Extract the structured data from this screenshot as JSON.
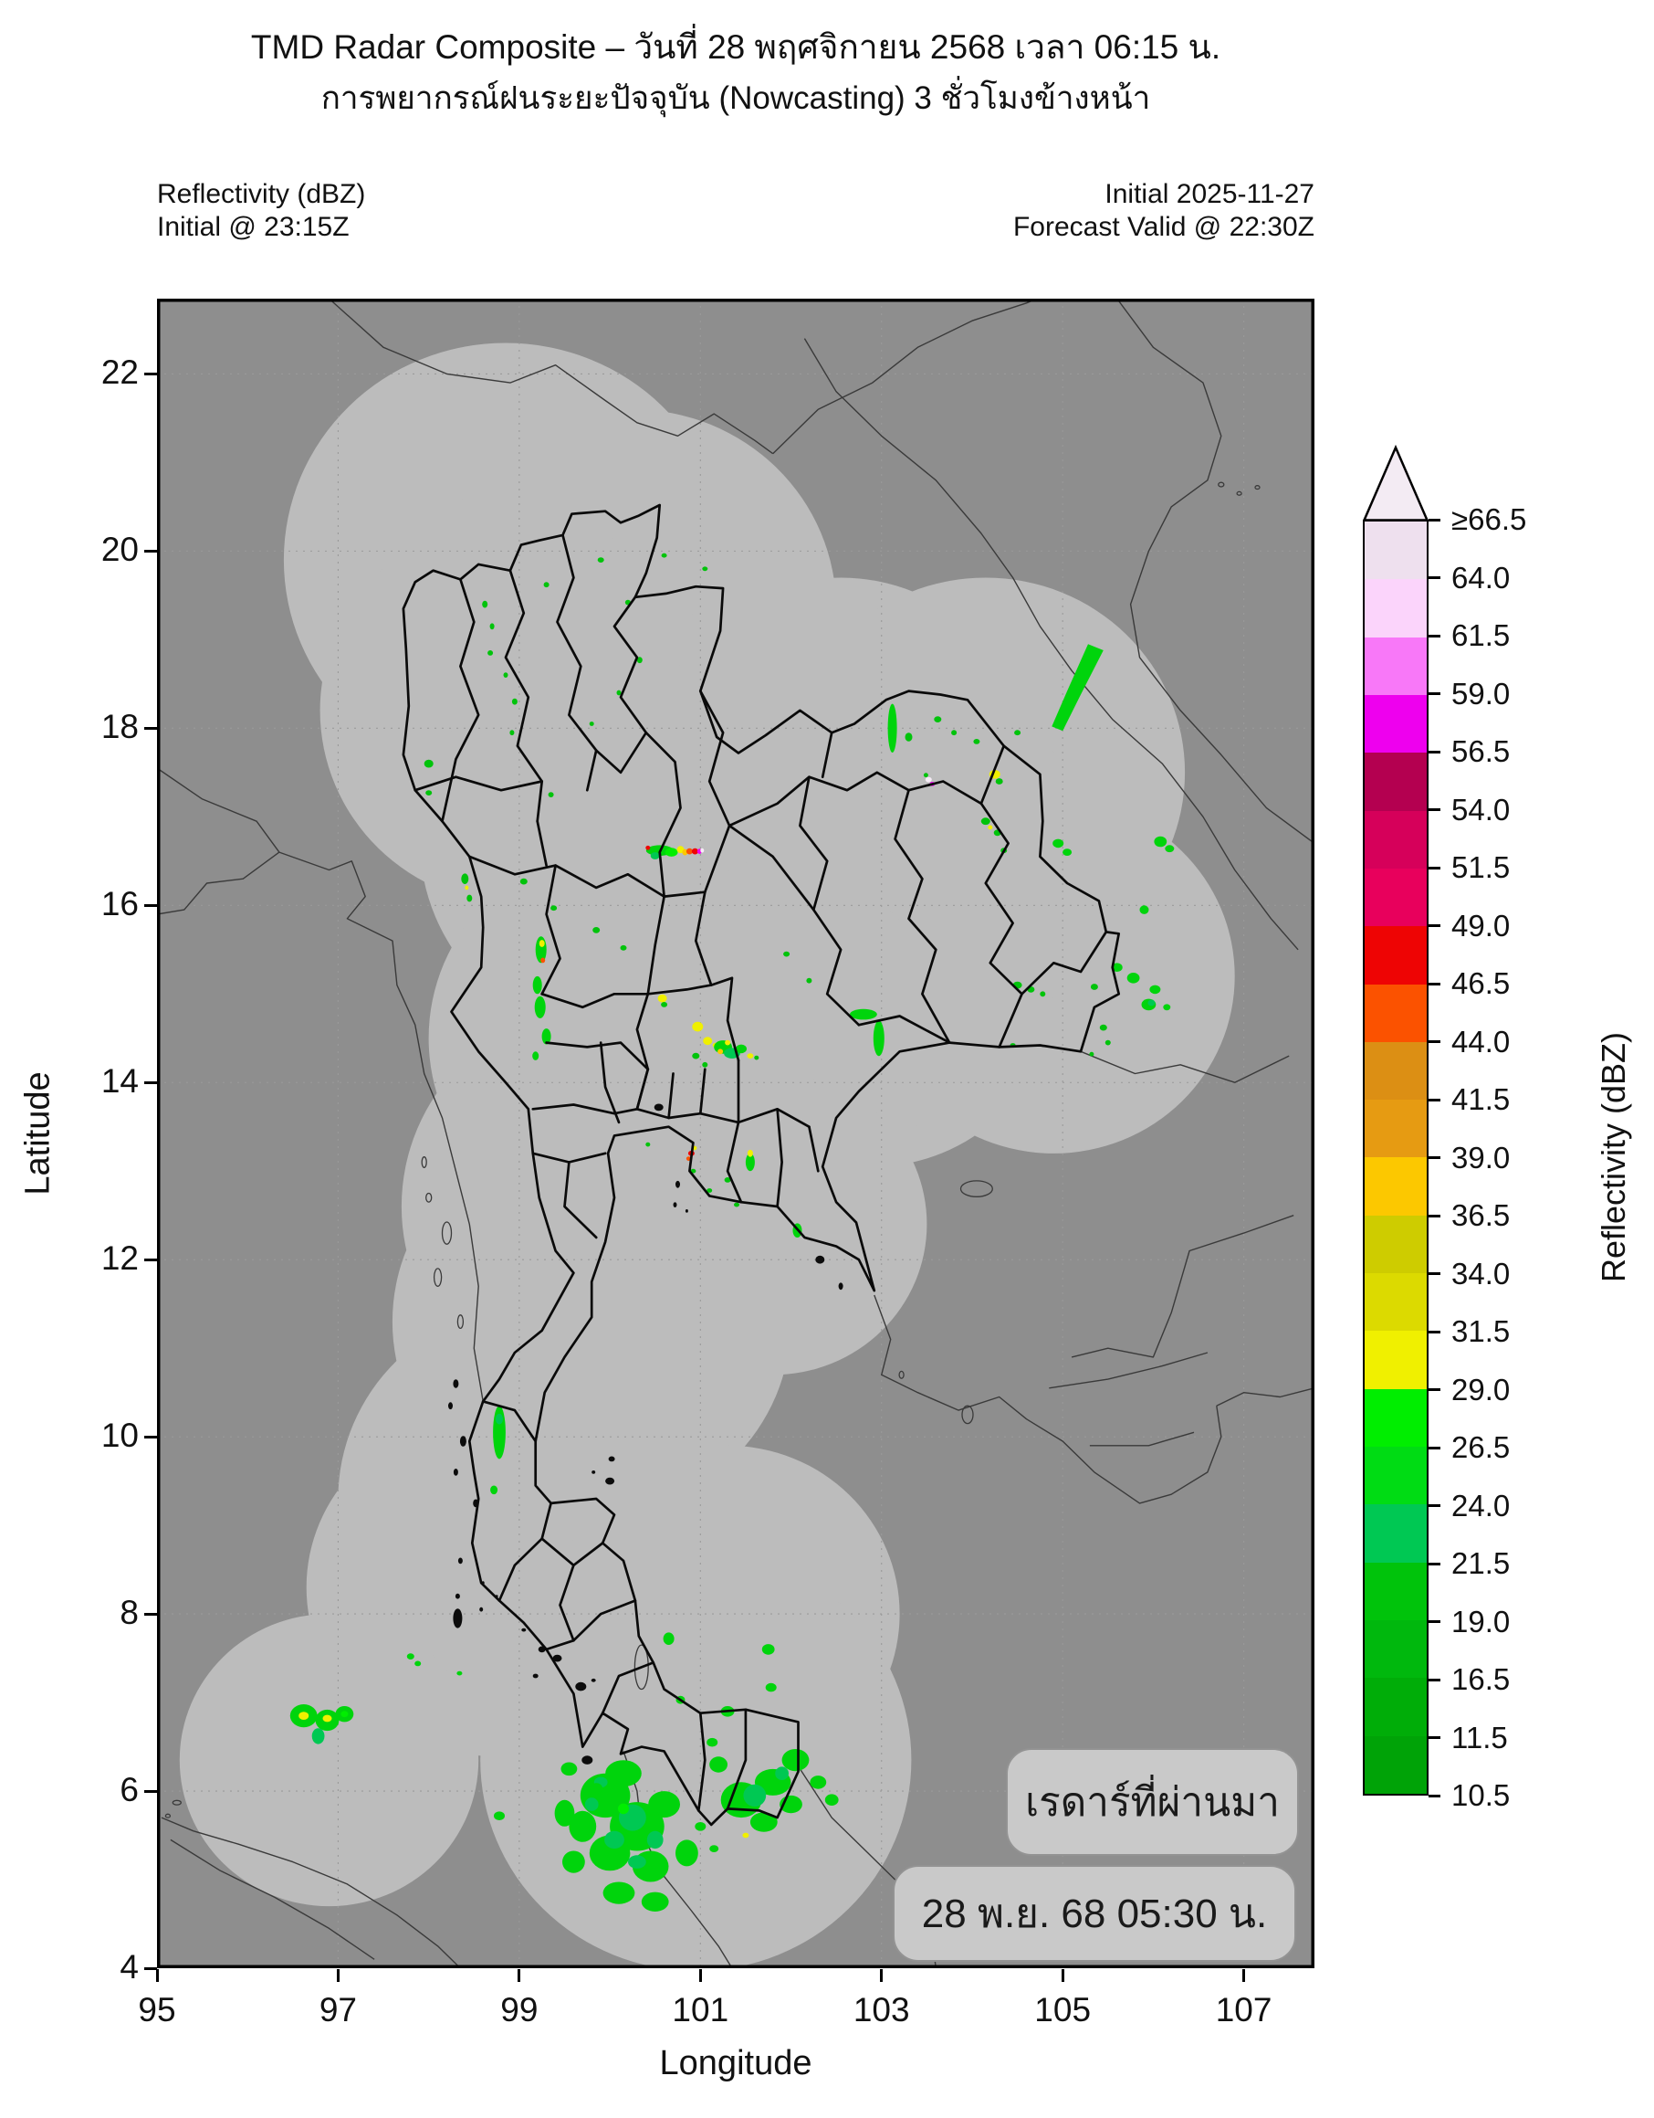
{
  "title": "TMD Radar Composite – วันที่ 28 พฤศจิกายน 2568 เวลา 06:15 น.",
  "subtitle": "การพยากรณ์ฝนระยะปัจจุบัน (Nowcasting) 3 ชั่วโมงข้างหน้า",
  "annotations": {
    "top_left_line1": "Reflectivity (dBZ)",
    "top_left_line2": "Initial @ 23:15Z",
    "top_right_line1": "Initial 2025-11-27",
    "top_right_line2": "Forecast Valid @ 22:30Z"
  },
  "axes": {
    "xlabel": "Longitude",
    "ylabel": "Latitude",
    "x_ticks": [
      95,
      97,
      99,
      101,
      103,
      105,
      107
    ],
    "y_ticks": [
      22,
      20,
      18,
      16,
      14,
      12,
      10,
      8,
      6,
      4
    ],
    "extent": {
      "lon_min": 95,
      "lon_max": 107.78,
      "lat_min": 4,
      "lat_max": 22.85
    }
  },
  "colorbar": {
    "label": "Reflectivity (dBZ)",
    "boundaries": [
      "10.5",
      "11.5",
      "16.5",
      "19.0",
      "21.5",
      "24.0",
      "26.5",
      "29.0",
      "31.5",
      "34.0",
      "36.5",
      "39.0",
      "41.5",
      "44.0",
      "46.5",
      "49.0",
      "51.5",
      "54.0",
      "56.5",
      "59.0",
      "61.5",
      "64.0",
      "≥66.5"
    ],
    "segment_colors": [
      "#00a307",
      "#00ad08",
      "#00b80d",
      "#00c30b",
      "#00c853",
      "#00dc14",
      "#00ee00",
      "#f0f000",
      "#dcda00",
      "#cecc00",
      "#fcc800",
      "#e69b12",
      "#dc8f14",
      "#fb5200",
      "#ee0404",
      "#e8005c",
      "#d6005a",
      "#b40050",
      "#ee00ee",
      "#f878f8",
      "#fbd4fb",
      "#eee0ee"
    ],
    "arrow_color": "#f3ebf3"
  },
  "overlay_boxes": {
    "past_radar_label": "เรดาร์ที่ผ่านมา",
    "timestamp_label": "28 พ.ย. 68 05:30 น."
  },
  "map": {
    "background_color": "#8e8e8e",
    "coverage_color": "#bcbcbc",
    "coverage_circles": [
      [
        98.85,
        19.9,
        2.45
      ],
      [
        100.25,
        19.35,
        2.25
      ],
      [
        99.0,
        18.2,
        2.2
      ],
      [
        100.2,
        16.75,
        2.3
      ],
      [
        102.55,
        17.6,
        2.1
      ],
      [
        104.15,
        17.5,
        2.2
      ],
      [
        104.9,
        15.2,
        2.0
      ],
      [
        102.9,
        15.05,
        2.0
      ],
      [
        103.6,
        16.35,
        1.9
      ],
      [
        100.2,
        14.5,
        2.2
      ],
      [
        101.8,
        14.55,
        1.9
      ],
      [
        100.0,
        12.6,
        2.3
      ],
      [
        101.8,
        12.4,
        1.7
      ],
      [
        99.8,
        11.3,
        2.2
      ],
      [
        99.2,
        9.3,
        2.2
      ],
      [
        98.55,
        8.3,
        1.9
      ],
      [
        101.3,
        8.0,
        1.9
      ],
      [
        96.9,
        6.35,
        1.65
      ],
      [
        100.95,
        6.35,
        2.38
      ]
    ],
    "echoes": [
      [
        99.95,
        5.95,
        0.55,
        0.5,
        "#00d40c"
      ],
      [
        100.3,
        5.6,
        0.6,
        0.55,
        "#00d40c"
      ],
      [
        100.0,
        5.3,
        0.45,
        0.4,
        "#00d40c"
      ],
      [
        100.45,
        5.15,
        0.4,
        0.35,
        "#00d40c"
      ],
      [
        99.7,
        5.6,
        0.3,
        0.35,
        "#00d40c"
      ],
      [
        100.15,
        6.2,
        0.4,
        0.3,
        "#00d40c"
      ],
      [
        100.6,
        5.85,
        0.35,
        0.3,
        "#00d40c"
      ],
      [
        99.6,
        5.2,
        0.25,
        0.25,
        "#00d40c"
      ],
      [
        100.1,
        4.85,
        0.35,
        0.25,
        "#00d40c"
      ],
      [
        100.5,
        4.75,
        0.3,
        0.22,
        "#00d40c"
      ],
      [
        100.85,
        5.3,
        0.25,
        0.3,
        "#00d40c"
      ],
      [
        99.55,
        6.25,
        0.18,
        0.15,
        "#00d40c"
      ],
      [
        99.5,
        5.75,
        0.22,
        0.3,
        "#00d40c"
      ],
      [
        100.25,
        5.7,
        0.3,
        0.3,
        "#00c853"
      ],
      [
        100.05,
        5.45,
        0.22,
        0.2,
        "#00c853"
      ],
      [
        100.5,
        5.45,
        0.18,
        0.2,
        "#00c853"
      ],
      [
        99.8,
        5.85,
        0.15,
        0.15,
        "#00c853"
      ],
      [
        100.3,
        5.2,
        0.2,
        0.15,
        "#00c853"
      ],
      [
        99.9,
        6.1,
        0.15,
        0.12,
        "#00c853"
      ],
      [
        100.15,
        5.8,
        0.12,
        0.12,
        "#00ee00"
      ],
      [
        101.45,
        5.9,
        0.45,
        0.4,
        "#00d40c"
      ],
      [
        101.8,
        6.1,
        0.4,
        0.3,
        "#00d40c"
      ],
      [
        102.05,
        6.35,
        0.3,
        0.25,
        "#00d40c"
      ],
      [
        101.7,
        5.65,
        0.3,
        0.22,
        "#00d40c"
      ],
      [
        102.0,
        5.85,
        0.25,
        0.2,
        "#00d40c"
      ],
      [
        101.2,
        6.3,
        0.2,
        0.18,
        "#00d40c"
      ],
      [
        102.3,
        6.1,
        0.18,
        0.15,
        "#00d40c"
      ],
      [
        102.45,
        5.9,
        0.15,
        0.13,
        "#00d40c"
      ],
      [
        101.6,
        5.95,
        0.25,
        0.25,
        "#00c853"
      ],
      [
        101.9,
        6.2,
        0.15,
        0.15,
        "#00c853"
      ],
      [
        101.5,
        5.5,
        0.07,
        0.06,
        "#f0f000"
      ],
      [
        101.0,
        5.6,
        0.12,
        0.1,
        "#00d40c"
      ],
      [
        101.15,
        5.35,
        0.1,
        0.08,
        "#00d40c"
      ],
      [
        98.78,
        5.72,
        0.12,
        0.1,
        "#00d40c"
      ],
      [
        101.13,
        6.55,
        0.12,
        0.1,
        "#00d40c"
      ],
      [
        101.3,
        6.9,
        0.15,
        0.12,
        "#00d40c"
      ],
      [
        101.78,
        7.17,
        0.12,
        0.1,
        "#00d40c"
      ],
      [
        101.75,
        7.6,
        0.14,
        0.12,
        "#00d40c"
      ],
      [
        100.78,
        7.03,
        0.1,
        0.09,
        "#00d40c"
      ],
      [
        100.65,
        7.72,
        0.12,
        0.14,
        "#00d40c"
      ],
      [
        99.85,
        6.03,
        0.14,
        0.12,
        "#00d40c"
      ],
      [
        96.62,
        6.85,
        0.3,
        0.26,
        "#00d40c"
      ],
      [
        96.62,
        6.85,
        0.11,
        0.09,
        "#f0f000"
      ],
      [
        96.88,
        6.8,
        0.26,
        0.24,
        "#00d40c"
      ],
      [
        96.88,
        6.82,
        0.1,
        0.08,
        "#f0f000"
      ],
      [
        96.78,
        6.62,
        0.14,
        0.18,
        "#00c853"
      ],
      [
        97.07,
        6.87,
        0.2,
        0.18,
        "#00d40c"
      ],
      [
        97.07,
        6.87,
        0.08,
        0.07,
        "#00ee00"
      ],
      [
        97.8,
        7.52,
        0.08,
        0.07,
        "#00d40c"
      ],
      [
        97.88,
        7.44,
        0.07,
        0.06,
        "#00d40c"
      ],
      [
        98.34,
        7.33,
        0.06,
        0.05,
        "#00d40c"
      ],
      [
        98.78,
        10.05,
        0.14,
        0.6,
        "#00d40c"
      ],
      [
        98.78,
        10.2,
        0.08,
        0.12,
        "#00c853"
      ],
      [
        98.72,
        9.4,
        0.08,
        0.1,
        "#00d40c"
      ],
      [
        99.24,
        15.5,
        0.12,
        0.3,
        "#00d40c"
      ],
      [
        99.25,
        15.57,
        0.06,
        0.08,
        "#f0f000"
      ],
      [
        99.26,
        15.38,
        0.05,
        0.06,
        "#fb5200"
      ],
      [
        99.2,
        15.1,
        0.1,
        0.2,
        "#00d40c"
      ],
      [
        99.23,
        14.85,
        0.12,
        0.25,
        "#00d40c"
      ],
      [
        99.3,
        14.52,
        0.1,
        0.18,
        "#00d40c"
      ],
      [
        99.18,
        14.3,
        0.07,
        0.1,
        "#00d40c"
      ],
      [
        98.4,
        16.3,
        0.08,
        0.12,
        "#00c30b"
      ],
      [
        98.45,
        16.08,
        0.06,
        0.08,
        "#00c30b"
      ],
      [
        99.05,
        16.27,
        0.08,
        0.07,
        "#00c30b"
      ],
      [
        99.38,
        15.97,
        0.07,
        0.06,
        "#00c30b"
      ],
      [
        99.85,
        15.72,
        0.08,
        0.07,
        "#00c30b"
      ],
      [
        100.15,
        15.52,
        0.07,
        0.06,
        "#00c30b"
      ],
      [
        98.0,
        17.6,
        0.1,
        0.09,
        "#00c30b"
      ],
      [
        98.0,
        17.27,
        0.07,
        0.06,
        "#00c30b"
      ],
      [
        98.62,
        19.4,
        0.06,
        0.08,
        "#00c30b"
      ],
      [
        98.7,
        19.15,
        0.05,
        0.07,
        "#00c30b"
      ],
      [
        98.68,
        18.85,
        0.06,
        0.06,
        "#00c30b"
      ],
      [
        98.85,
        18.6,
        0.05,
        0.06,
        "#00c30b"
      ],
      [
        98.95,
        18.3,
        0.06,
        0.07,
        "#00c30b"
      ],
      [
        98.92,
        17.95,
        0.05,
        0.06,
        "#00c30b"
      ],
      [
        99.3,
        19.62,
        0.06,
        0.06,
        "#00c30b"
      ],
      [
        99.9,
        19.9,
        0.07,
        0.06,
        "#00c30b"
      ],
      [
        100.2,
        19.42,
        0.06,
        0.06,
        "#00c30b"
      ],
      [
        100.33,
        18.77,
        0.06,
        0.07,
        "#00c30b"
      ],
      [
        100.1,
        18.4,
        0.05,
        0.06,
        "#00c30b"
      ],
      [
        99.8,
        18.05,
        0.05,
        0.05,
        "#00c30b"
      ],
      [
        100.6,
        19.95,
        0.06,
        0.05,
        "#00c30b"
      ],
      [
        101.05,
        19.8,
        0.06,
        0.05,
        "#00c30b"
      ],
      [
        99.35,
        17.25,
        0.06,
        0.06,
        "#00c30b"
      ],
      [
        98.42,
        16.2,
        0.04,
        0.05,
        "#f0f000"
      ],
      [
        100.55,
        16.62,
        0.3,
        0.12,
        "#00d40c"
      ],
      [
        100.68,
        16.6,
        0.14,
        0.1,
        "#00ee00"
      ],
      [
        100.5,
        16.56,
        0.1,
        0.08,
        "#00c853"
      ],
      [
        100.78,
        16.63,
        0.08,
        0.08,
        "#f0f000"
      ],
      [
        100.83,
        16.6,
        0.06,
        0.07,
        "#fcc800"
      ],
      [
        100.88,
        16.61,
        0.07,
        0.07,
        "#fb5200"
      ],
      [
        100.94,
        16.61,
        0.07,
        0.07,
        "#ee0404"
      ],
      [
        100.99,
        16.61,
        0.05,
        0.06,
        "#ee00ee"
      ],
      [
        101.02,
        16.62,
        0.04,
        0.05,
        "#f6ecf6"
      ],
      [
        100.42,
        16.65,
        0.05,
        0.05,
        "#ee0404"
      ],
      [
        100.58,
        14.95,
        0.1,
        0.09,
        "#f0f000"
      ],
      [
        100.6,
        14.88,
        0.07,
        0.06,
        "#00c30b"
      ],
      [
        100.97,
        14.63,
        0.12,
        0.11,
        "#f0f000"
      ],
      [
        101.08,
        14.47,
        0.1,
        0.09,
        "#f0f000"
      ],
      [
        101.17,
        14.42,
        0.07,
        0.06,
        "#f0f000"
      ],
      [
        101.25,
        14.4,
        0.2,
        0.15,
        "#00d40c"
      ],
      [
        101.35,
        14.33,
        0.18,
        0.12,
        "#00c853"
      ],
      [
        101.45,
        14.38,
        0.12,
        0.1,
        "#00d40c"
      ],
      [
        101.3,
        14.45,
        0.06,
        0.06,
        "#f0f000"
      ],
      [
        101.22,
        14.35,
        0.06,
        0.06,
        "#fcc800"
      ],
      [
        101.55,
        14.3,
        0.07,
        0.06,
        "#f0f000"
      ],
      [
        101.62,
        14.28,
        0.05,
        0.05,
        "#00c30b"
      ],
      [
        100.95,
        14.3,
        0.08,
        0.07,
        "#00c30b"
      ],
      [
        101.05,
        14.2,
        0.06,
        0.06,
        "#00c30b"
      ],
      [
        102.8,
        14.77,
        0.3,
        0.12,
        "#00d40c"
      ],
      [
        102.97,
        14.5,
        0.12,
        0.4,
        "#00d40c"
      ],
      [
        104.5,
        15.1,
        0.1,
        0.08,
        "#00c30b"
      ],
      [
        104.65,
        15.05,
        0.08,
        0.07,
        "#00c30b"
      ],
      [
        104.78,
        15.0,
        0.06,
        0.06,
        "#00c30b"
      ],
      [
        101.95,
        15.45,
        0.07,
        0.06,
        "#00c30b"
      ],
      [
        102.2,
        15.15,
        0.06,
        0.06,
        "#00c30b"
      ],
      [
        103.12,
        18.0,
        0.1,
        0.55,
        "#00d40c"
      ],
      [
        103.3,
        17.9,
        0.08,
        0.1,
        "#00c30b"
      ],
      [
        104.25,
        17.48,
        0.12,
        0.1,
        "#f0f000"
      ],
      [
        104.3,
        17.4,
        0.08,
        0.07,
        "#00c30b"
      ],
      [
        103.52,
        17.42,
        0.07,
        0.06,
        "#f6ecf6"
      ],
      [
        103.56,
        17.37,
        0.06,
        0.05,
        "#ee00ee"
      ],
      [
        103.49,
        17.47,
        0.05,
        0.05,
        "#00c30b"
      ],
      [
        103.62,
        18.1,
        0.08,
        0.07,
        "#00c30b"
      ],
      [
        103.8,
        17.95,
        0.06,
        0.06,
        "#00c30b"
      ],
      [
        104.05,
        17.85,
        0.07,
        0.06,
        "#00c30b"
      ],
      [
        104.5,
        17.95,
        0.07,
        0.06,
        "#00c30b"
      ],
      [
        104.15,
        16.95,
        0.1,
        0.08,
        "#00c30b"
      ],
      [
        104.28,
        16.82,
        0.08,
        0.07,
        "#00c30b"
      ],
      [
        104.35,
        16.62,
        0.07,
        0.06,
        "#00c30b"
      ],
      [
        104.2,
        16.88,
        0.05,
        0.05,
        "#f0f000"
      ],
      [
        104.95,
        16.7,
        0.12,
        0.1,
        "#00d40c"
      ],
      [
        105.05,
        16.6,
        0.1,
        0.08,
        "#00d40c"
      ],
      [
        106.08,
        16.72,
        0.14,
        0.12,
        "#00d40c"
      ],
      [
        106.18,
        16.64,
        0.1,
        0.08,
        "#00d40c"
      ],
      [
        105.9,
        15.95,
        0.1,
        0.1,
        "#00d40c"
      ],
      [
        105.6,
        15.3,
        0.12,
        0.1,
        "#00d40c"
      ],
      [
        105.78,
        15.18,
        0.14,
        0.12,
        "#00d40c"
      ],
      [
        106.02,
        15.05,
        0.12,
        0.1,
        "#00d40c"
      ],
      [
        105.95,
        14.88,
        0.16,
        0.13,
        "#00d40c"
      ],
      [
        105.98,
        14.9,
        0.08,
        0.07,
        "#00c853"
      ],
      [
        106.15,
        14.85,
        0.08,
        0.07,
        "#00d40c"
      ],
      [
        105.35,
        15.08,
        0.08,
        0.07,
        "#00c30b"
      ],
      [
        105.45,
        14.62,
        0.08,
        0.07,
        "#00c30b"
      ],
      [
        105.5,
        14.45,
        0.06,
        0.06,
        "#00c30b"
      ],
      [
        105.32,
        14.32,
        0.05,
        0.05,
        "#00c30b"
      ],
      [
        104.45,
        14.42,
        0.06,
        0.05,
        "#00c30b"
      ],
      [
        102.07,
        12.33,
        0.1,
        0.16,
        "#00d40c"
      ],
      [
        101.55,
        13.1,
        0.1,
        0.2,
        "#00d40c"
      ],
      [
        101.55,
        13.2,
        0.06,
        0.08,
        "#f0f000"
      ],
      [
        101.3,
        12.9,
        0.07,
        0.06,
        "#00c30b"
      ],
      [
        101.1,
        12.78,
        0.06,
        0.05,
        "#00c30b"
      ],
      [
        100.9,
        13.2,
        0.07,
        0.06,
        "#ee0404"
      ],
      [
        100.93,
        13.26,
        0.06,
        0.05,
        "#f0f000"
      ],
      [
        100.87,
        13.14,
        0.05,
        0.05,
        "#fb5200"
      ],
      [
        100.92,
        13.0,
        0.06,
        0.05,
        "#00c30b"
      ],
      [
        101.4,
        12.62,
        0.06,
        0.05,
        "#00c30b"
      ],
      [
        100.42,
        13.3,
        0.05,
        0.05,
        "#00c30b"
      ]
    ],
    "echo_polygons": [
      {
        "pts": [
          [
            104.88,
            18.02
          ],
          [
            105.05,
            18.42
          ],
          [
            105.28,
            18.95
          ],
          [
            105.45,
            18.88
          ],
          [
            105.2,
            18.38
          ],
          [
            105.0,
            17.97
          ]
        ],
        "c": "#00d40c"
      }
    ]
  }
}
